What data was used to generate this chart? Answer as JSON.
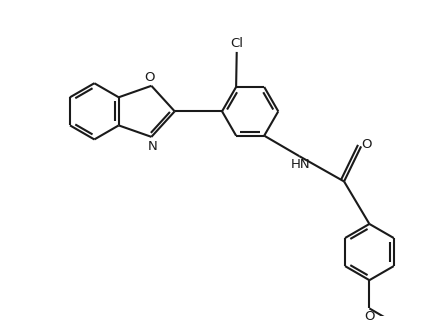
{
  "background_color": "#ffffff",
  "line_color": "#1a1a1a",
  "line_width": 1.5,
  "font_size": 9.5,
  "figsize": [
    4.4,
    3.24
  ],
  "dpi": 100,
  "xlim": [
    -1,
    12
  ],
  "ylim": [
    -1,
    9
  ]
}
